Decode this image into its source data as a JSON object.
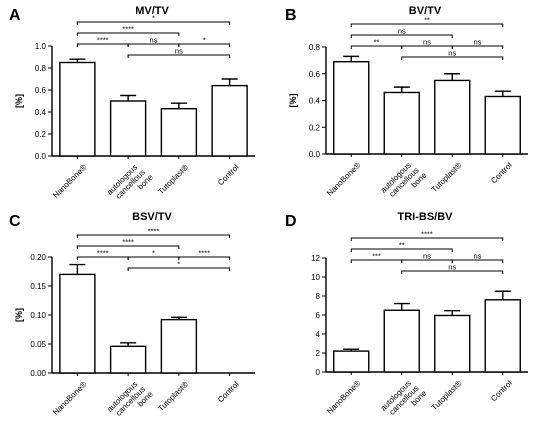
{
  "chart_data": [
    {
      "panel": "A",
      "type": "bar",
      "title": "MV/TV",
      "ylabel": "[%]",
      "categories": [
        "NanoBone®",
        "autologous cancellous bone",
        "Tutoplast®",
        "Control"
      ],
      "values": [
        0.85,
        0.5,
        0.43,
        0.64
      ],
      "errors": [
        0.03,
        0.05,
        0.05,
        0.06
      ],
      "ylim": [
        0.0,
        1.0
      ],
      "yticks": [
        "0.0",
        "0.2",
        "0.4",
        "0.6",
        "0.8",
        "1.0"
      ],
      "significance": [
        {
          "from": 0,
          "to": 3,
          "label": "*"
        },
        {
          "from": 0,
          "to": 2,
          "label": "****"
        },
        {
          "from": 0,
          "to": 1,
          "label": "****"
        },
        {
          "from": 1,
          "to": 2,
          "label": "ns"
        },
        {
          "from": 2,
          "to": 3,
          "label": "*"
        },
        {
          "from": 1,
          "to": 3,
          "label": "ns"
        }
      ]
    },
    {
      "panel": "B",
      "type": "bar",
      "title": "BV/TV",
      "ylabel": "[%]",
      "categories": [
        "NanoBone®",
        "autologous cancellous bone",
        "Tutoplast®",
        "Control"
      ],
      "values": [
        0.69,
        0.46,
        0.55,
        0.43
      ],
      "errors": [
        0.04,
        0.04,
        0.05,
        0.04
      ],
      "ylim": [
        0.0,
        0.8
      ],
      "yticks": [
        "0.0",
        "0.2",
        "0.4",
        "0.6",
        "0.8"
      ],
      "significance": [
        {
          "from": 0,
          "to": 3,
          "label": "**"
        },
        {
          "from": 0,
          "to": 2,
          "label": "ns"
        },
        {
          "from": 0,
          "to": 1,
          "label": "**"
        },
        {
          "from": 1,
          "to": 2,
          "label": "ns"
        },
        {
          "from": 2,
          "to": 3,
          "label": "ns"
        },
        {
          "from": 1,
          "to": 3,
          "label": "ns"
        }
      ]
    },
    {
      "panel": "C",
      "type": "bar",
      "title": "BSV/TV",
      "ylabel": "[%]",
      "categories": [
        "NanoBone®",
        "autologous cancellous bone",
        "Tutoplast®",
        "Control"
      ],
      "values": [
        0.17,
        0.046,
        0.092,
        0.0
      ],
      "errors": [
        0.017,
        0.006,
        0.004,
        0.0
      ],
      "ylim": [
        0.0,
        0.2
      ],
      "yticks": [
        "0.00",
        "0.05",
        "0.10",
        "0.15",
        "0.20"
      ],
      "significance": [
        {
          "from": 0,
          "to": 3,
          "label": "****"
        },
        {
          "from": 0,
          "to": 2,
          "label": "****"
        },
        {
          "from": 0,
          "to": 1,
          "label": "****"
        },
        {
          "from": 1,
          "to": 2,
          "label": "*"
        },
        {
          "from": 2,
          "to": 3,
          "label": "****"
        },
        {
          "from": 1,
          "to": 3,
          "label": "*"
        }
      ]
    },
    {
      "panel": "D",
      "type": "bar",
      "title": "TRI-BS/BV",
      "ylabel": "",
      "categories": [
        "NanoBone®",
        "autologous cancellous bone",
        "Tutoplast®",
        "Control"
      ],
      "values": [
        2.2,
        6.5,
        5.95,
        7.6
      ],
      "errors": [
        0.2,
        0.7,
        0.5,
        0.9
      ],
      "ylim": [
        0,
        12
      ],
      "yticks": [
        "0",
        "2",
        "4",
        "6",
        "8",
        "10",
        "12"
      ],
      "significance": [
        {
          "from": 0,
          "to": 3,
          "label": "****"
        },
        {
          "from": 0,
          "to": 2,
          "label": "**"
        },
        {
          "from": 0,
          "to": 1,
          "label": "***"
        },
        {
          "from": 1,
          "to": 2,
          "label": "ns"
        },
        {
          "from": 2,
          "to": 3,
          "label": "ns"
        },
        {
          "from": 1,
          "to": 3,
          "label": "ns"
        }
      ]
    }
  ]
}
